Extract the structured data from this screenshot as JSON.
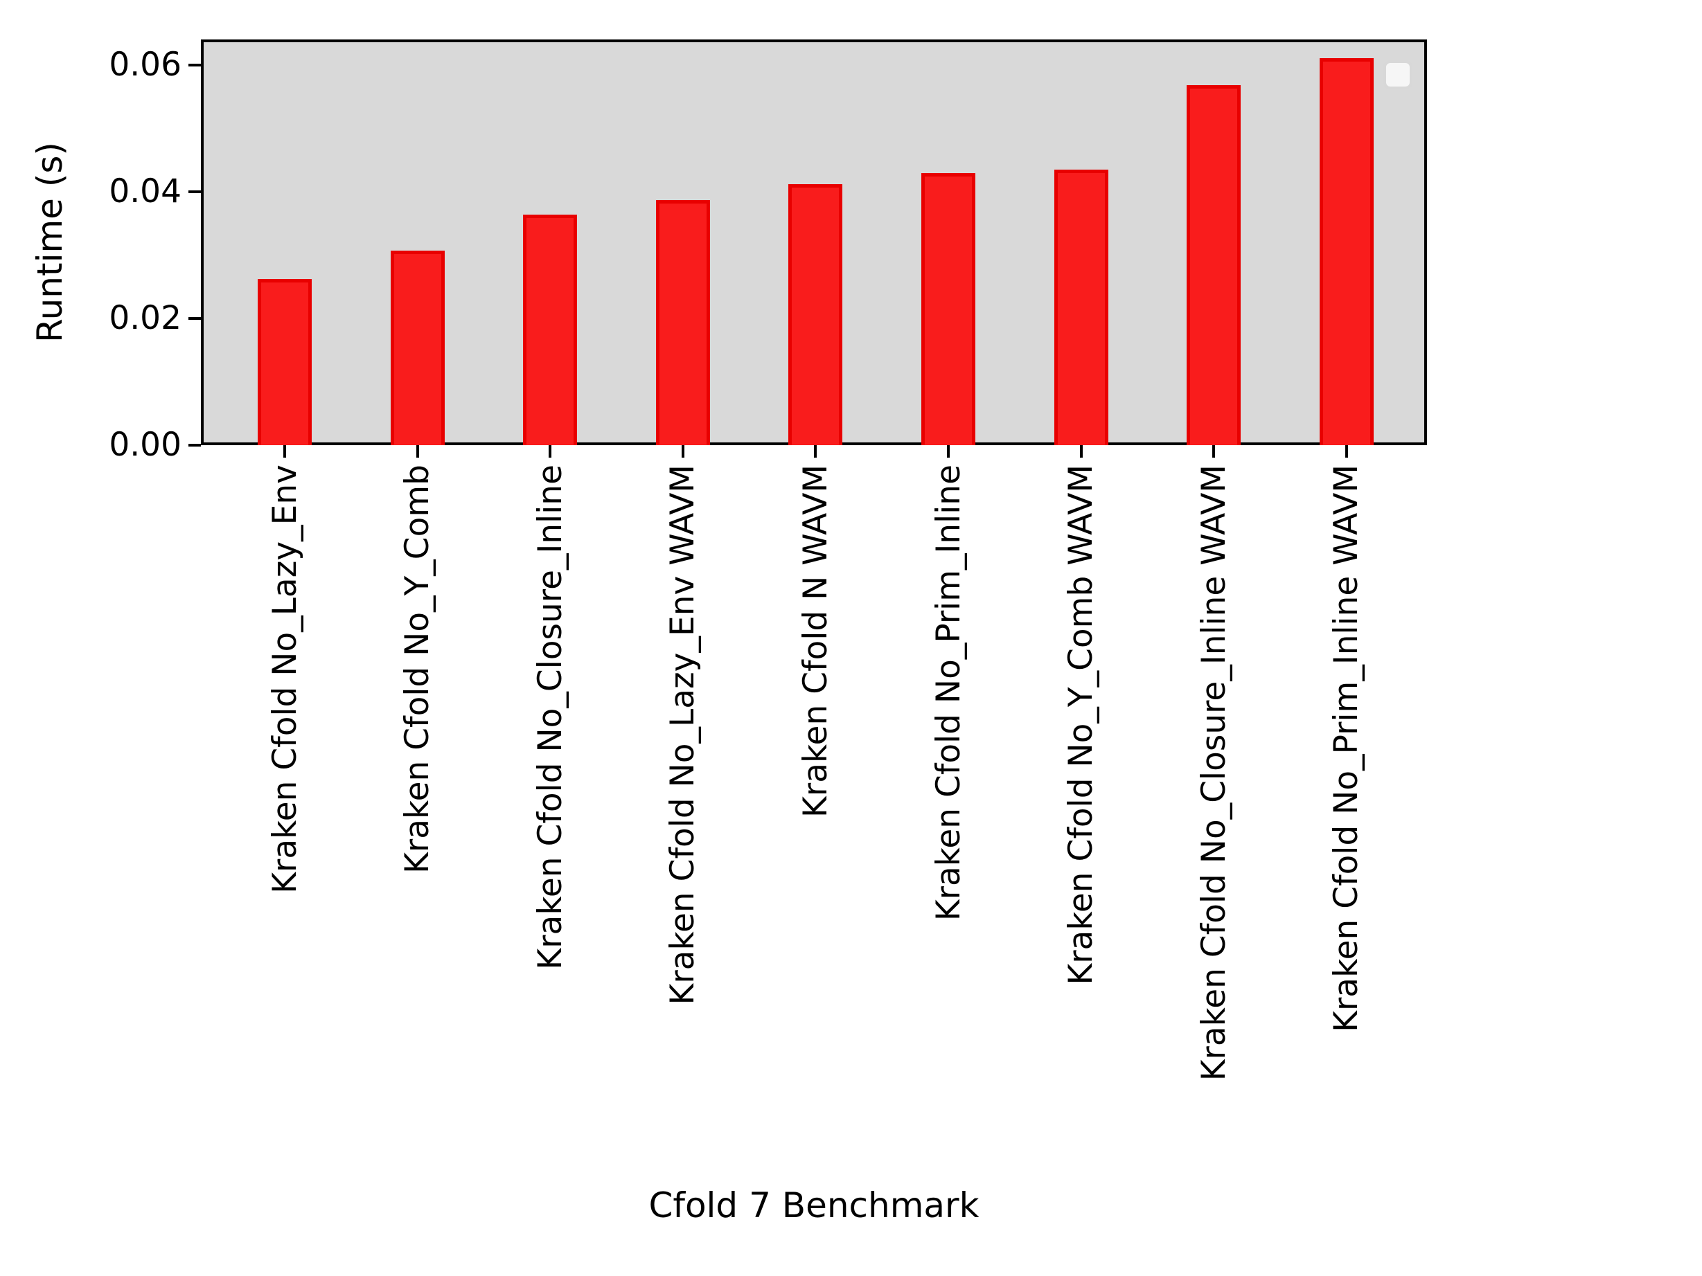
{
  "figure": {
    "background": "#ffffff",
    "plot_background": "#d9d9d9",
    "spine_color": "#000000",
    "text_color": "#000000",
    "bar_fill": "#f91c1c",
    "bar_edge": "#e80000",
    "legend_face": "#f6f6f6",
    "legend_edge": "#d8d8d8"
  },
  "chart_data": {
    "type": "bar",
    "title": "",
    "xlabel": "Cfold 7 Benchmark",
    "ylabel": "Runtime (s)",
    "categories": [
      "Kraken Cfold No_Lazy_Env",
      "Kraken Cfold No_Y_Comb",
      "Kraken Cfold No_Closure_Inline",
      "Kraken Cfold No_Lazy_Env WAVM",
      "Kraken Cfold N WAVM",
      "Kraken Cfold No_Prim_Inline",
      "Kraken Cfold No_Y_Comb WAVM",
      "Kraken Cfold No_Closure_Inline WAVM",
      "Kraken Cfold No_Prim_Inline WAVM"
    ],
    "values": [
      0.0262,
      0.0307,
      0.0364,
      0.0387,
      0.0412,
      0.0429,
      0.0435,
      0.0568,
      0.061
    ],
    "yticks": [
      0.0,
      0.02,
      0.04,
      0.06
    ],
    "ytick_labels": [
      "0.00",
      "0.02",
      "0.04",
      "0.06"
    ],
    "ylim": [
      0,
      0.064
    ],
    "x_tick_label_rotation": 90,
    "grid": false,
    "legend": "empty-box-top-right",
    "bar_color_name": "red"
  }
}
